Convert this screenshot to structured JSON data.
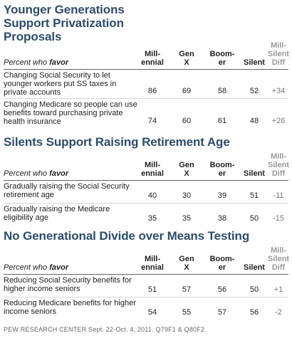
{
  "columns": [
    "Mill-\nennial",
    "Gen\nX",
    "Boom-\ner",
    "Silent",
    "Mill-\nSilent\nDiff"
  ],
  "lead_prefix": "Percent who",
  "lead_bold": "favor",
  "source": "PEW RESEARCH CENTER Sept. 22-Oct. 4, 2011. Q79F1 & Q80F2.",
  "chart_data": [
    {
      "type": "table",
      "title": "Younger Generations Support Privatization Proposals",
      "rows": [
        {
          "label": "Changing Social Security to let younger workers put SS taxes in private accounts",
          "values": [
            "86",
            "69",
            "58",
            "52",
            "+34"
          ]
        },
        {
          "label": "Changing Medicare so people can use benefits toward purchasing private health insurance",
          "values": [
            "74",
            "60",
            "61",
            "48",
            "+26"
          ]
        }
      ]
    },
    {
      "type": "table",
      "title": "Silents Support Raising Retirement Age",
      "rows": [
        {
          "label": "Gradually raising the Social Security retirement age",
          "values": [
            "40",
            "30",
            "39",
            "51",
            "-11"
          ]
        },
        {
          "label": "Gradually raising the Medicare eligibility age",
          "values": [
            "35",
            "35",
            "38",
            "50",
            "-15"
          ]
        }
      ]
    },
    {
      "type": "table",
      "title": "No Generational Divide over Means Testing",
      "rows": [
        {
          "label": "Reducing Social Security benefits for higher income seniors",
          "values": [
            "51",
            "57",
            "56",
            "50",
            "+1"
          ]
        },
        {
          "label": "Reducing Medicare benefits for higher income seniors",
          "values": [
            "54",
            "55",
            "57",
            "56",
            "-2"
          ]
        }
      ]
    }
  ]
}
